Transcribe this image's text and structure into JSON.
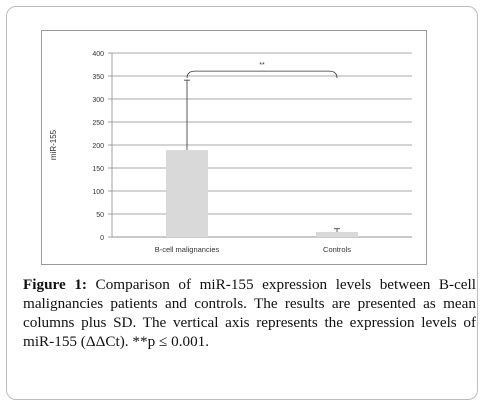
{
  "chart_data": {
    "type": "bar",
    "categories": [
      "B-cell malignancies",
      "Controls"
    ],
    "values": [
      189,
      11
    ],
    "error_sd": [
      152,
      7
    ],
    "ylabel": "miR-155",
    "xlabel": "",
    "ylim": [
      0,
      400
    ],
    "yticks": [
      0,
      50,
      100,
      150,
      200,
      250,
      300,
      350,
      400
    ],
    "ytick_labels": [
      "0",
      "50",
      "100",
      "150",
      "200",
      "250",
      "300",
      "350",
      "400"
    ],
    "grid": true,
    "legend": "none",
    "annotation": "**",
    "bar_color": "#d9d9d9"
  },
  "caption": {
    "label": "Figure 1:",
    "text": " Comparison of miR-155 expression levels between B-cell malignancies patients and controls. The results are presented as mean columns plus SD. The vertical axis represents the expression levels of miR-155 (ΔΔCt). **p ≤ 0.001."
  }
}
